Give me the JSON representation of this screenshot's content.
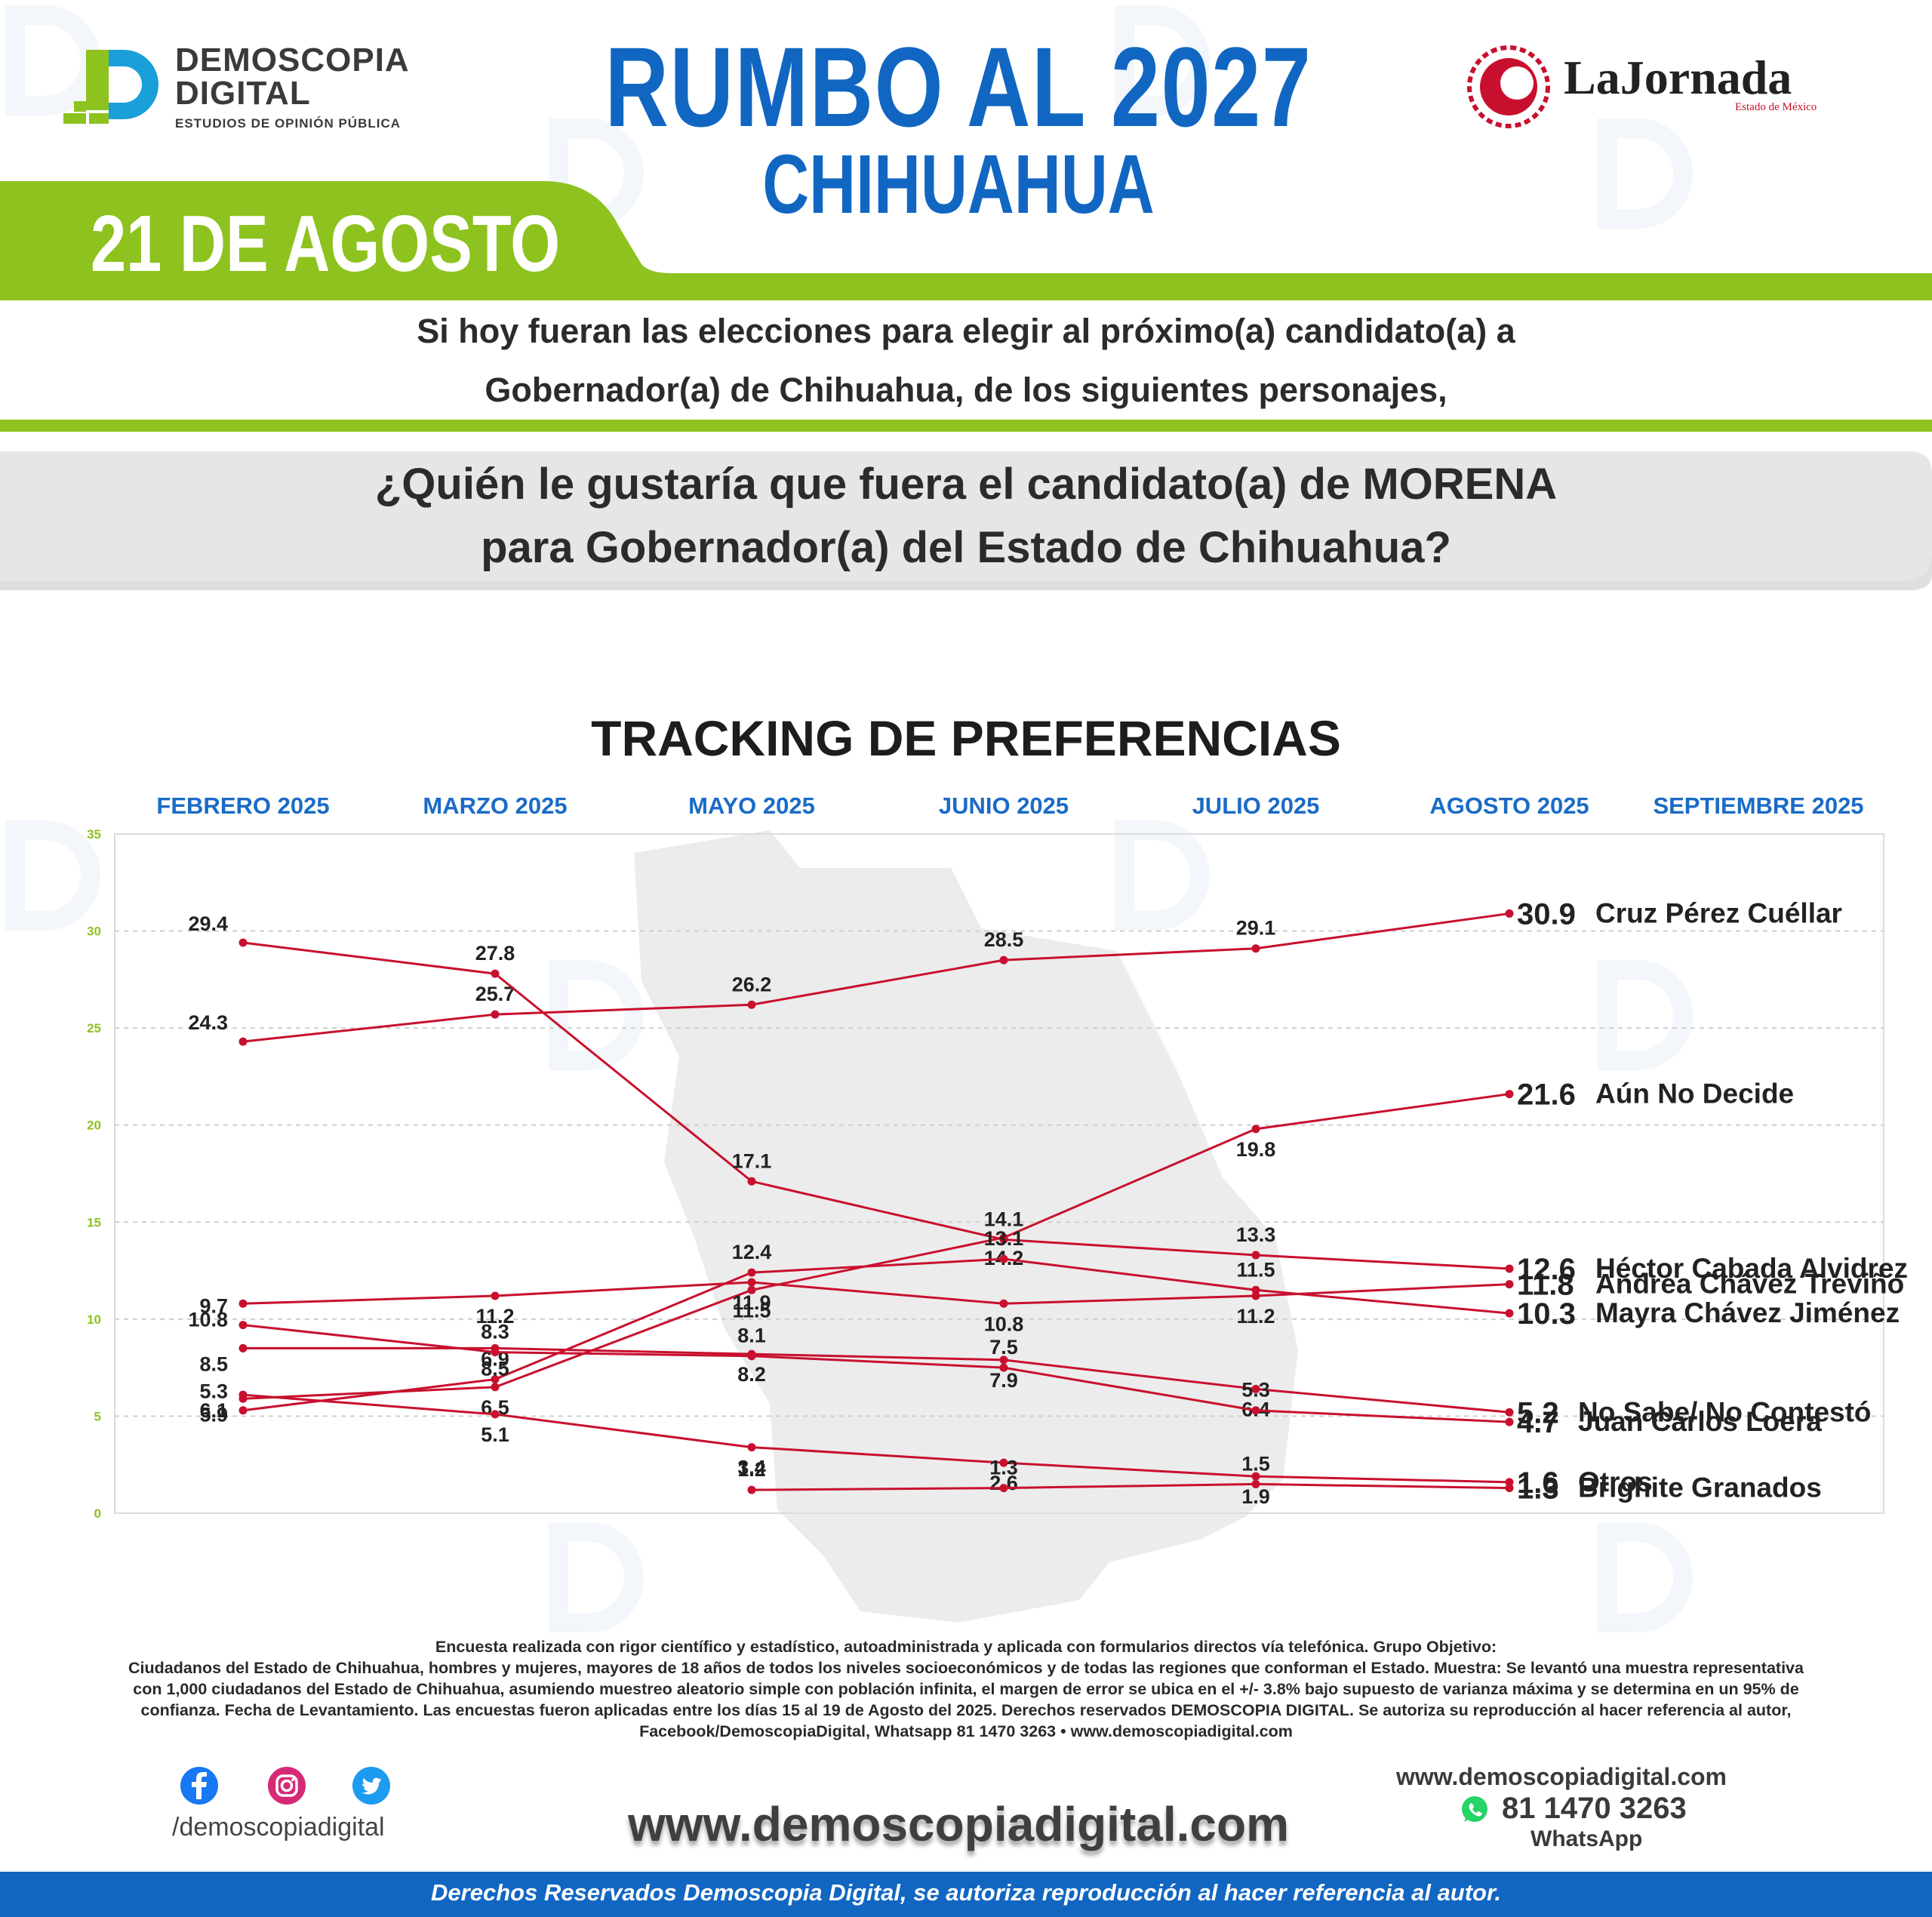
{
  "header": {
    "brand_line1": "DEMOSCOPIA",
    "brand_line2": "DIGITAL",
    "brand_sub": "ESTUDIOS DE OPINIÓN PÚBLICA",
    "title": "RUMBO AL 2027",
    "subtitle": "CHIHUAHUA",
    "partner_name": "LaJornada",
    "partner_sub": "Estado de México",
    "date": "21 DE AGOSTO"
  },
  "question": {
    "line1": "Si hoy fueran las elecciones para elegir al próximo(a) candidato(a) a",
    "line2": "Gobernador(a) de Chihuahua, de los siguientes personajes,",
    "main_line1": "¿Quién le gustaría que fuera el candidato(a) de MORENA",
    "main_line2": "para Gobernador(a) del Estado de Chihuahua?"
  },
  "colors": {
    "blue": "#1166c2",
    "green": "#8dc21f",
    "line": "#c8102e"
  },
  "chart_data": {
    "type": "line",
    "title": "TRACKING DE PREFERENCIAS",
    "x": [
      "FEBRERO 2025",
      "MARZO 2025",
      "MAYO 2025",
      "JUNIO 2025",
      "JULIO 2025",
      "AGOSTO 2025",
      "SEPTIEMBRE 2025"
    ],
    "ylim": [
      0,
      35
    ],
    "yticks": [
      0,
      5,
      10,
      15,
      20,
      25,
      30,
      35
    ],
    "grid": true,
    "series": [
      {
        "name": "Cruz Pérez Cuéllar",
        "values": [
          24.3,
          25.7,
          26.2,
          28.5,
          29.1,
          30.9,
          null
        ]
      },
      {
        "name": "Aún No Decide",
        "values": [
          5.9,
          6.5,
          11.5,
          14.2,
          19.8,
          21.6,
          null
        ]
      },
      {
        "name": "Héctor Cabada Alvidrez",
        "values": [
          29.4,
          27.8,
          17.1,
          14.1,
          13.3,
          12.6,
          null
        ]
      },
      {
        "name": "Andrea Chávez Treviño",
        "values": [
          10.8,
          11.2,
          11.9,
          10.8,
          11.2,
          11.8,
          null
        ]
      },
      {
        "name": "Mayra Chávez Jiménez",
        "values": [
          5.3,
          6.9,
          12.4,
          13.1,
          11.5,
          10.3,
          null
        ]
      },
      {
        "name": "No Sabe/ No Contestó",
        "values": [
          8.5,
          8.5,
          8.2,
          7.9,
          6.4,
          5.2,
          null
        ]
      },
      {
        "name": "Juan Carlos Loera",
        "values": [
          9.7,
          8.3,
          8.1,
          7.5,
          5.3,
          4.7,
          null
        ]
      },
      {
        "name": "Otros",
        "values": [
          6.1,
          5.1,
          3.4,
          2.6,
          1.9,
          1.6,
          null
        ]
      },
      {
        "name": "Brighite Granados",
        "values": [
          null,
          null,
          1.2,
          1.3,
          1.5,
          1.3,
          null
        ]
      }
    ]
  },
  "footnote": {
    "line1": "Encuesta realizada con rigor científico y estadístico, autoadministrada y aplicada con formularios directos vía telefónica. Grupo Objetivo:",
    "line2": "Ciudadanos del Estado de Chihuahua, hombres y mujeres, mayores de 18 años de todos los niveles socioeconómicos y de todas las regiones que conforman el Estado. Muestra: Se levantó una muestra representativa",
    "line3": "con 1,000 ciudadanos del Estado de Chihuahua, asumiendo muestreo aleatorio simple con población infinita, el margen de error se ubica en el +/- 3.8% bajo supuesto de varianza máxima y se determina en un 95% de",
    "line4": "confianza. Fecha de Levantamiento. Las encuestas fueron aplicadas entre los días 15 al 19 de Agosto del 2025. Derechos reservados DEMOSCOPIA DIGITAL. Se autoriza su reproducción al hacer referencia al autor,",
    "line5": "Facebook/DemoscopiaDigital, Whatsapp 81 1470 3263 • www.demoscopiadigital.com"
  },
  "footer": {
    "social_handle": "/demoscopiadigital",
    "website_big": "www.demoscopiadigital.com",
    "website_small": "www.demoscopiadigital.com",
    "phone": "81 1470 3263",
    "whatsapp_label": "WhatsApp",
    "rights": "Derechos Reservados Demoscopia Digital, se autoriza reproducción al hacer referencia al autor."
  }
}
